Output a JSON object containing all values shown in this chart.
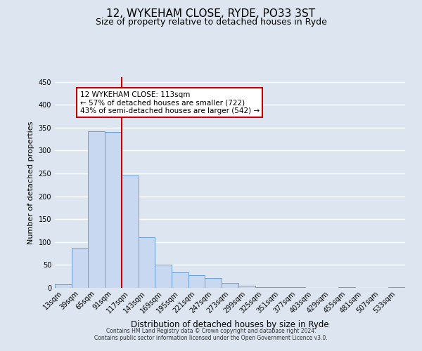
{
  "title": "12, WYKEHAM CLOSE, RYDE, PO33 3ST",
  "subtitle": "Size of property relative to detached houses in Ryde",
  "xlabel": "Distribution of detached houses by size in Ryde",
  "ylabel": "Number of detached properties",
  "bar_labels": [
    "13sqm",
    "39sqm",
    "65sqm",
    "91sqm",
    "117sqm",
    "143sqm",
    "169sqm",
    "195sqm",
    "221sqm",
    "247sqm",
    "273sqm",
    "299sqm",
    "325sqm",
    "351sqm",
    "377sqm",
    "403sqm",
    "429sqm",
    "455sqm",
    "481sqm",
    "507sqm",
    "533sqm"
  ],
  "bar_values": [
    7,
    88,
    342,
    340,
    245,
    110,
    50,
    33,
    27,
    22,
    10,
    5,
    2,
    2,
    1,
    0,
    0,
    1,
    0,
    0,
    1
  ],
  "bar_color": "#c8d8f0",
  "bar_edge_color": "#6a9fd8",
  "vline_x": 4,
  "vline_color": "#cc0000",
  "annotation_title": "12 WYKEHAM CLOSE: 113sqm",
  "annotation_line1": "← 57% of detached houses are smaller (722)",
  "annotation_line2": "43% of semi-detached houses are larger (542) →",
  "annotation_box_color": "#ffffff",
  "annotation_box_edge": "#cc0000",
  "ylim": [
    0,
    460
  ],
  "yticks": [
    0,
    50,
    100,
    150,
    200,
    250,
    300,
    350,
    400,
    450
  ],
  "footer_line1": "Contains HM Land Registry data © Crown copyright and database right 2024.",
  "footer_line2": "Contains public sector information licensed under the Open Government Licence v3.0.",
  "bg_color": "#dde6f0",
  "plot_bg_color": "#dde6f0",
  "grid_color": "#ffffff",
  "title_fontsize": 11,
  "subtitle_fontsize": 9,
  "ylabel_fontsize": 8,
  "xlabel_fontsize": 8.5,
  "tick_fontsize": 7,
  "annotation_fontsize": 7.5,
  "footer_fontsize": 5.5
}
